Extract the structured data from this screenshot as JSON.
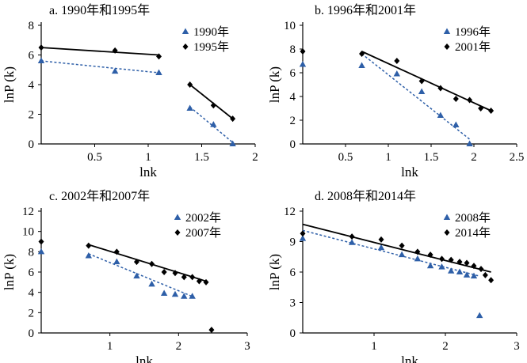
{
  "chart_data": [
    {
      "type": "scatter",
      "title": "a. 1990年和1995年",
      "xlabel": "lnk",
      "ylabel": "lnP (k)",
      "xlim": [
        0,
        2
      ],
      "ylim": [
        0,
        8
      ],
      "xticks": [
        "0.5",
        "1",
        "1.5",
        "2"
      ],
      "yticks": [
        "0",
        "2",
        "4",
        "6",
        "8"
      ],
      "legend_position": "top-right",
      "series": [
        {
          "name": "1990年",
          "marker": "triangle",
          "color": "#2e5fa8",
          "points": [
            [
              0,
              5.6
            ],
            [
              0.69,
              4.9
            ],
            [
              1.1,
              4.8
            ],
            [
              1.39,
              2.4
            ],
            [
              1.61,
              1.3
            ],
            [
              1.79,
              0
            ]
          ],
          "fits": [
            [
              [
                0,
                5.6
              ],
              [
                1.1,
                4.8
              ]
            ],
            [
              [
                1.39,
                2.5
              ],
              [
                1.79,
                0.1
              ]
            ]
          ]
        },
        {
          "name": "1995年",
          "marker": "diamond",
          "color": "#000000",
          "points": [
            [
              0,
              6.5
            ],
            [
              0.69,
              6.3
            ],
            [
              1.1,
              5.9
            ],
            [
              1.39,
              4.0
            ],
            [
              1.61,
              2.6
            ],
            [
              1.79,
              1.7
            ]
          ],
          "fits": [
            [
              [
                0,
                6.5
              ],
              [
                1.1,
                6.0
              ]
            ],
            [
              [
                1.39,
                4.0
              ],
              [
                1.79,
                1.7
              ]
            ]
          ]
        }
      ]
    },
    {
      "type": "scatter",
      "title": "b. 1996年和2001年",
      "xlabel": "lnk",
      "ylabel": "lnP (k)",
      "xlim": [
        0,
        2.5
      ],
      "ylim": [
        0,
        10
      ],
      "xticks": [
        "0.5",
        "1",
        "1.5",
        "2",
        "2.5"
      ],
      "yticks": [
        "0",
        "2",
        "4",
        "6",
        "8",
        "10"
      ],
      "legend_position": "top-right",
      "series": [
        {
          "name": "1996年",
          "marker": "triangle",
          "color": "#2e5fa8",
          "points": [
            [
              0,
              6.7
            ],
            [
              0.69,
              6.6
            ],
            [
              1.1,
              5.9
            ],
            [
              1.39,
              4.4
            ],
            [
              1.61,
              2.4
            ],
            [
              1.79,
              1.6
            ],
            [
              1.95,
              0
            ]
          ],
          "fits": [
            [
              [
                0.69,
                7.6
              ],
              [
                1.95,
                0.4
              ]
            ]
          ]
        },
        {
          "name": "2001年",
          "marker": "diamond",
          "color": "#000000",
          "points": [
            [
              0,
              7.8
            ],
            [
              0.69,
              7.6
            ],
            [
              1.1,
              7.0
            ],
            [
              1.39,
              5.3
            ],
            [
              1.61,
              4.7
            ],
            [
              1.79,
              3.8
            ],
            [
              1.95,
              3.7
            ],
            [
              2.08,
              3.0
            ],
            [
              2.2,
              2.8
            ]
          ],
          "fits": [
            [
              [
                0.69,
                7.8
              ],
              [
                2.2,
                2.8
              ]
            ]
          ]
        }
      ]
    },
    {
      "type": "scatter",
      "title": "c. 2002年和2007年",
      "xlabel": "lnk",
      "ylabel": "lnP (k)",
      "xlim": [
        0,
        3
      ],
      "ylim": [
        0,
        12
      ],
      "xticks": [
        "1",
        "2",
        "3"
      ],
      "yticks": [
        "0",
        "2",
        "4",
        "6",
        "8",
        "10",
        "12"
      ],
      "legend_position": "top-right",
      "series": [
        {
          "name": "2002年",
          "marker": "triangle",
          "color": "#2e5fa8",
          "points": [
            [
              0,
              8.0
            ],
            [
              0.69,
              7.6
            ],
            [
              1.1,
              7.0
            ],
            [
              1.39,
              5.6
            ],
            [
              1.61,
              4.8
            ],
            [
              1.79,
              3.9
            ],
            [
              1.95,
              3.8
            ],
            [
              2.08,
              3.6
            ],
            [
              2.2,
              3.6
            ]
          ],
          "fits": [
            [
              [
                0.69,
                7.8
              ],
              [
                2.2,
                3.6
              ]
            ]
          ]
        },
        {
          "name": "2007年",
          "marker": "diamond",
          "color": "#000000",
          "points": [
            [
              0,
              9.0
            ],
            [
              0.69,
              8.6
            ],
            [
              1.1,
              8.0
            ],
            [
              1.39,
              7.0
            ],
            [
              1.61,
              6.8
            ],
            [
              1.79,
              6.0
            ],
            [
              1.95,
              5.9
            ],
            [
              2.08,
              5.5
            ],
            [
              2.2,
              5.5
            ],
            [
              2.3,
              5.1
            ],
            [
              2.4,
              5.0
            ],
            [
              2.48,
              0.3
            ]
          ],
          "fits": [
            [
              [
                0.69,
                8.7
              ],
              [
                2.4,
                5.1
              ]
            ]
          ]
        }
      ]
    },
    {
      "type": "scatter",
      "title": "d. 2008年和2014年",
      "xlabel": "lnk",
      "ylabel": "lnP (k)",
      "xlim": [
        0,
        3
      ],
      "ylim": [
        0,
        12
      ],
      "xticks": [
        "1",
        "2",
        "3"
      ],
      "yticks": [
        "0",
        "3",
        "6",
        "9",
        "12"
      ],
      "legend_position": "top-right",
      "series": [
        {
          "name": "2008年",
          "marker": "triangle",
          "color": "#2e5fa8",
          "points": [
            [
              0,
              9.3
            ],
            [
              0.69,
              8.9
            ],
            [
              1.1,
              8.4
            ],
            [
              1.39,
              7.7
            ],
            [
              1.61,
              7.3
            ],
            [
              1.79,
              6.6
            ],
            [
              1.95,
              6.5
            ],
            [
              2.08,
              6.1
            ],
            [
              2.2,
              6.0
            ],
            [
              2.3,
              5.7
            ],
            [
              2.4,
              5.6
            ],
            [
              2.48,
              1.7
            ]
          ],
          "fits": [
            [
              [
                0,
                10.1
              ],
              [
                2.48,
                5.6
              ]
            ]
          ]
        },
        {
          "name": "2014年",
          "marker": "diamond",
          "color": "#000000",
          "points": [
            [
              0,
              9.8
            ],
            [
              0.69,
              9.5
            ],
            [
              1.1,
              9.2
            ],
            [
              1.39,
              8.6
            ],
            [
              1.61,
              8.0
            ],
            [
              1.79,
              7.7
            ],
            [
              1.95,
              7.3
            ],
            [
              2.08,
              7.2
            ],
            [
              2.2,
              7.0
            ],
            [
              2.3,
              6.9
            ],
            [
              2.4,
              6.6
            ],
            [
              2.5,
              6.3
            ],
            [
              2.56,
              5.7
            ],
            [
              2.64,
              5.2
            ]
          ],
          "fits": [
            [
              [
                0,
                10.7
              ],
              [
                2.64,
                6.0
              ]
            ]
          ]
        }
      ]
    }
  ]
}
